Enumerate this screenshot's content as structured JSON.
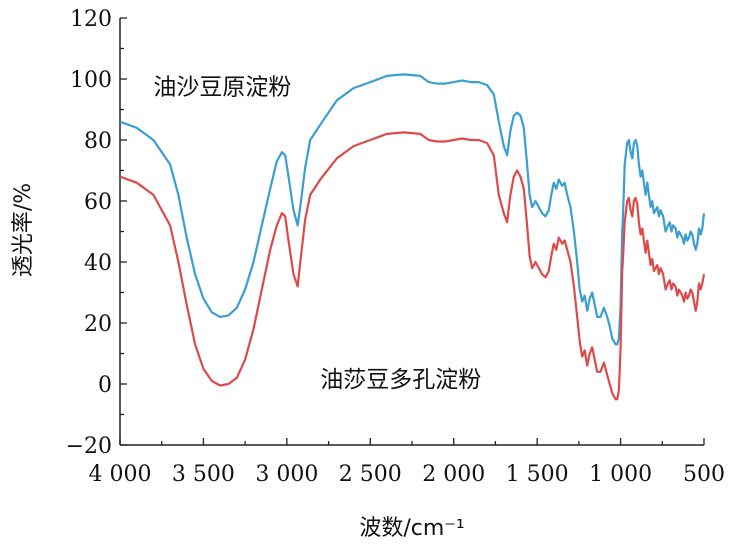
{
  "chart_data": {
    "type": "line",
    "xlabel": "波数/cm⁻¹",
    "ylabel": "透光率/%",
    "xlim": [
      4000,
      500
    ],
    "ylim": [
      -20,
      120
    ],
    "x_reversed": true,
    "x_ticks": [
      4000,
      3500,
      3000,
      2500,
      2000,
      1500,
      1000,
      500
    ],
    "x_tick_labels": [
      "4 000",
      "3 500",
      "3 000",
      "2 500",
      "2 000",
      "1 500",
      "1 000",
      "500"
    ],
    "y_ticks": [
      -20,
      0,
      20,
      40,
      60,
      80,
      100,
      120
    ],
    "y_tick_labels": [
      "−20",
      "0",
      "20",
      "40",
      "60",
      "80",
      "100",
      "120"
    ],
    "grid": false,
    "series": [
      {
        "name": "油沙豆原淀粉",
        "color": "#3a9fd0",
        "points": [
          [
            4000,
            86
          ],
          [
            3900,
            84
          ],
          [
            3800,
            80
          ],
          [
            3700,
            72
          ],
          [
            3650,
            62
          ],
          [
            3600,
            48
          ],
          [
            3550,
            36
          ],
          [
            3500,
            28
          ],
          [
            3450,
            23.5
          ],
          [
            3400,
            22
          ],
          [
            3350,
            22.5
          ],
          [
            3300,
            25
          ],
          [
            3250,
            31
          ],
          [
            3200,
            40
          ],
          [
            3150,
            52
          ],
          [
            3100,
            64
          ],
          [
            3060,
            73
          ],
          [
            3030,
            76
          ],
          [
            3010,
            75
          ],
          [
            2990,
            68
          ],
          [
            2960,
            57
          ],
          [
            2935,
            52
          ],
          [
            2915,
            60
          ],
          [
            2890,
            71
          ],
          [
            2860,
            80
          ],
          [
            2800,
            85
          ],
          [
            2700,
            93
          ],
          [
            2600,
            97
          ],
          [
            2500,
            99
          ],
          [
            2400,
            101
          ],
          [
            2300,
            101.5
          ],
          [
            2200,
            101
          ],
          [
            2150,
            99
          ],
          [
            2100,
            98.5
          ],
          [
            2050,
            98.5
          ],
          [
            2000,
            99
          ],
          [
            1950,
            99.5
          ],
          [
            1900,
            99
          ],
          [
            1850,
            99
          ],
          [
            1800,
            98
          ],
          [
            1760,
            95
          ],
          [
            1730,
            86
          ],
          [
            1700,
            78
          ],
          [
            1680,
            75
          ],
          [
            1660,
            83
          ],
          [
            1640,
            88
          ],
          [
            1620,
            89
          ],
          [
            1600,
            88
          ],
          [
            1580,
            84
          ],
          [
            1560,
            72
          ],
          [
            1545,
            62
          ],
          [
            1530,
            58
          ],
          [
            1510,
            60
          ],
          [
            1490,
            58
          ],
          [
            1470,
            56
          ],
          [
            1450,
            55
          ],
          [
            1430,
            57
          ],
          [
            1415,
            62
          ],
          [
            1400,
            66
          ],
          [
            1385,
            64
          ],
          [
            1370,
            67
          ],
          [
            1350,
            65
          ],
          [
            1335,
            66
          ],
          [
            1320,
            62
          ],
          [
            1300,
            58
          ],
          [
            1280,
            50
          ],
          [
            1260,
            40
          ],
          [
            1245,
            31
          ],
          [
            1230,
            27
          ],
          [
            1215,
            29
          ],
          [
            1200,
            24
          ],
          [
            1185,
            28
          ],
          [
            1170,
            30
          ],
          [
            1155,
            26
          ],
          [
            1140,
            22
          ],
          [
            1120,
            22
          ],
          [
            1100,
            25
          ],
          [
            1080,
            22
          ],
          [
            1065,
            19
          ],
          [
            1050,
            15
          ],
          [
            1030,
            13
          ],
          [
            1020,
            13
          ],
          [
            1010,
            15
          ],
          [
            1000,
            26
          ],
          [
            990,
            50
          ],
          [
            985,
            56
          ],
          [
            975,
            72
          ],
          [
            960,
            79
          ],
          [
            950,
            80
          ],
          [
            940,
            76
          ],
          [
            930,
            74
          ],
          [
            920,
            79
          ],
          [
            910,
            80
          ],
          [
            900,
            78
          ],
          [
            890,
            72
          ],
          [
            880,
            68
          ],
          [
            870,
            70
          ],
          [
            860,
            66
          ],
          [
            850,
            62
          ],
          [
            840,
            66
          ],
          [
            830,
            62
          ],
          [
            820,
            58
          ],
          [
            810,
            60
          ],
          [
            800,
            56
          ],
          [
            790,
            57
          ],
          [
            780,
            58
          ],
          [
            770,
            55
          ],
          [
            760,
            57
          ],
          [
            745,
            55
          ],
          [
            730,
            50
          ],
          [
            715,
            52
          ],
          [
            705,
            53
          ],
          [
            695,
            50
          ],
          [
            685,
            52
          ],
          [
            670,
            51
          ],
          [
            660,
            48
          ],
          [
            650,
            50
          ],
          [
            640,
            49
          ],
          [
            630,
            48
          ],
          [
            620,
            46
          ],
          [
            610,
            49
          ],
          [
            600,
            47
          ],
          [
            590,
            48
          ],
          [
            580,
            50
          ],
          [
            570,
            49
          ],
          [
            560,
            46
          ],
          [
            550,
            44
          ],
          [
            540,
            46
          ],
          [
            530,
            51
          ],
          [
            520,
            49
          ],
          [
            510,
            51
          ],
          [
            500,
            56
          ]
        ]
      },
      {
        "name": "油莎豆多孔淀粉",
        "color": "#dd4a4a",
        "points": [
          [
            4000,
            68
          ],
          [
            3900,
            66
          ],
          [
            3800,
            62
          ],
          [
            3700,
            52
          ],
          [
            3650,
            40
          ],
          [
            3600,
            26
          ],
          [
            3550,
            13
          ],
          [
            3500,
            5
          ],
          [
            3450,
            1
          ],
          [
            3400,
            -0.5
          ],
          [
            3350,
            0
          ],
          [
            3300,
            2
          ],
          [
            3250,
            8
          ],
          [
            3200,
            18
          ],
          [
            3150,
            31
          ],
          [
            3100,
            44
          ],
          [
            3060,
            52
          ],
          [
            3030,
            56
          ],
          [
            3010,
            55
          ],
          [
            2990,
            47
          ],
          [
            2960,
            36
          ],
          [
            2935,
            32
          ],
          [
            2915,
            42
          ],
          [
            2890,
            54
          ],
          [
            2860,
            62
          ],
          [
            2800,
            67
          ],
          [
            2700,
            74
          ],
          [
            2600,
            78
          ],
          [
            2500,
            80
          ],
          [
            2400,
            82
          ],
          [
            2300,
            82.5
          ],
          [
            2200,
            82
          ],
          [
            2150,
            80
          ],
          [
            2100,
            79.5
          ],
          [
            2050,
            79.5
          ],
          [
            2000,
            80
          ],
          [
            1950,
            80.5
          ],
          [
            1900,
            80
          ],
          [
            1850,
            80
          ],
          [
            1800,
            79
          ],
          [
            1760,
            75
          ],
          [
            1730,
            62
          ],
          [
            1700,
            56
          ],
          [
            1680,
            53
          ],
          [
            1660,
            62
          ],
          [
            1640,
            68
          ],
          [
            1620,
            70
          ],
          [
            1600,
            68
          ],
          [
            1580,
            64
          ],
          [
            1560,
            52
          ],
          [
            1545,
            42
          ],
          [
            1530,
            38
          ],
          [
            1510,
            40
          ],
          [
            1490,
            38
          ],
          [
            1470,
            36
          ],
          [
            1450,
            35
          ],
          [
            1430,
            37
          ],
          [
            1415,
            42
          ],
          [
            1400,
            46
          ],
          [
            1385,
            44
          ],
          [
            1370,
            48
          ],
          [
            1350,
            46
          ],
          [
            1335,
            47
          ],
          [
            1320,
            44
          ],
          [
            1300,
            40
          ],
          [
            1280,
            32
          ],
          [
            1260,
            22
          ],
          [
            1245,
            14
          ],
          [
            1230,
            9
          ],
          [
            1215,
            11
          ],
          [
            1200,
            6
          ],
          [
            1185,
            10
          ],
          [
            1170,
            12
          ],
          [
            1155,
            8
          ],
          [
            1140,
            4
          ],
          [
            1120,
            4
          ],
          [
            1100,
            7
          ],
          [
            1080,
            3
          ],
          [
            1065,
            0
          ],
          [
            1050,
            -3
          ],
          [
            1030,
            -5
          ],
          [
            1020,
            -5
          ],
          [
            1010,
            -2
          ],
          [
            1000,
            12
          ],
          [
            990,
            37
          ],
          [
            985,
            42
          ],
          [
            975,
            53
          ],
          [
            960,
            60
          ],
          [
            950,
            61
          ],
          [
            940,
            57
          ],
          [
            930,
            55
          ],
          [
            920,
            60
          ],
          [
            910,
            61
          ],
          [
            900,
            59
          ],
          [
            890,
            53
          ],
          [
            880,
            49
          ],
          [
            870,
            51
          ],
          [
            860,
            47
          ],
          [
            850,
            43
          ],
          [
            840,
            47
          ],
          [
            830,
            43
          ],
          [
            820,
            39
          ],
          [
            810,
            41
          ],
          [
            800,
            37
          ],
          [
            790,
            38
          ],
          [
            780,
            39
          ],
          [
            770,
            36
          ],
          [
            760,
            38
          ],
          [
            745,
            36
          ],
          [
            730,
            31
          ],
          [
            715,
            33
          ],
          [
            705,
            34
          ],
          [
            695,
            31
          ],
          [
            685,
            33
          ],
          [
            670,
            32
          ],
          [
            660,
            29
          ],
          [
            650,
            31
          ],
          [
            640,
            30
          ],
          [
            630,
            29
          ],
          [
            620,
            27
          ],
          [
            610,
            30
          ],
          [
            600,
            28
          ],
          [
            590,
            29
          ],
          [
            580,
            31
          ],
          [
            570,
            30
          ],
          [
            560,
            27
          ],
          [
            550,
            24
          ],
          [
            540,
            27
          ],
          [
            530,
            33
          ],
          [
            520,
            31
          ],
          [
            510,
            33
          ],
          [
            500,
            36
          ]
        ]
      }
    ],
    "annotations": [
      {
        "text": "油沙豆原淀粉",
        "x": 3800,
        "y": 95
      },
      {
        "text": "油莎豆多孔淀粉",
        "x": 2800,
        "y": -1
      }
    ]
  }
}
